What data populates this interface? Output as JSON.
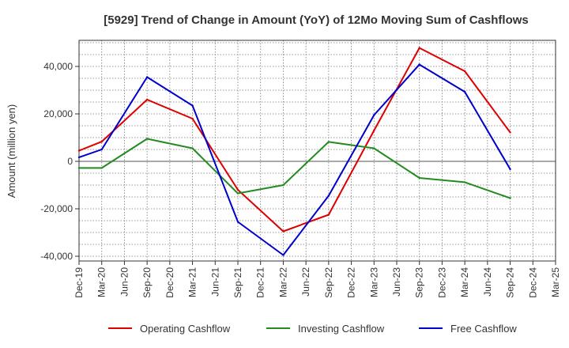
{
  "chart_data": {
    "type": "line",
    "title": "[5929]  Trend of Change in Amount (YoY) of 12Mo Moving Sum of Cashflows",
    "xlabel": "",
    "ylabel": "Amount (million yen)",
    "ylim": [
      -42000,
      51000
    ],
    "yticks": [
      40000,
      20000,
      0,
      -20000,
      -40000
    ],
    "ytick_labels": [
      "40,000",
      "20,000",
      "0",
      "-20,000",
      "-40,000"
    ],
    "categories": [
      "Dec-19",
      "Mar-20",
      "Jun-20",
      "Sep-20",
      "Dec-20",
      "Mar-21",
      "Jun-21",
      "Sep-21",
      "Dec-21",
      "Mar-22",
      "Jun-22",
      "Sep-22",
      "Dec-22",
      "Mar-23",
      "Jun-23",
      "Sep-23",
      "Dec-23",
      "Mar-24",
      "Jun-24",
      "Sep-24",
      "Dec-24",
      "Mar-25"
    ],
    "grid": true,
    "legend_position": "bottom",
    "series": [
      {
        "name": "Operating Cashflow",
        "color": "#dd0000",
        "values": [
          4500,
          8300,
          null,
          26000,
          null,
          18000,
          null,
          -12000,
          null,
          -29500,
          null,
          -22500,
          null,
          13000,
          null,
          47800,
          null,
          38000,
          null,
          12200,
          null,
          null
        ]
      },
      {
        "name": "Investing Cashflow",
        "color": "#228b22",
        "values": [
          -2800,
          -2800,
          null,
          9500,
          null,
          5500,
          null,
          -13500,
          null,
          -10000,
          null,
          8200,
          null,
          5500,
          null,
          -7000,
          null,
          -8800,
          null,
          -15500,
          null,
          null
        ]
      },
      {
        "name": "Free Cashflow",
        "color": "#0000cc",
        "values": [
          1700,
          5000,
          null,
          35500,
          null,
          23500,
          null,
          -25500,
          null,
          -39500,
          null,
          -14500,
          null,
          19500,
          null,
          40800,
          null,
          29300,
          null,
          -3300,
          null,
          null
        ]
      }
    ]
  }
}
